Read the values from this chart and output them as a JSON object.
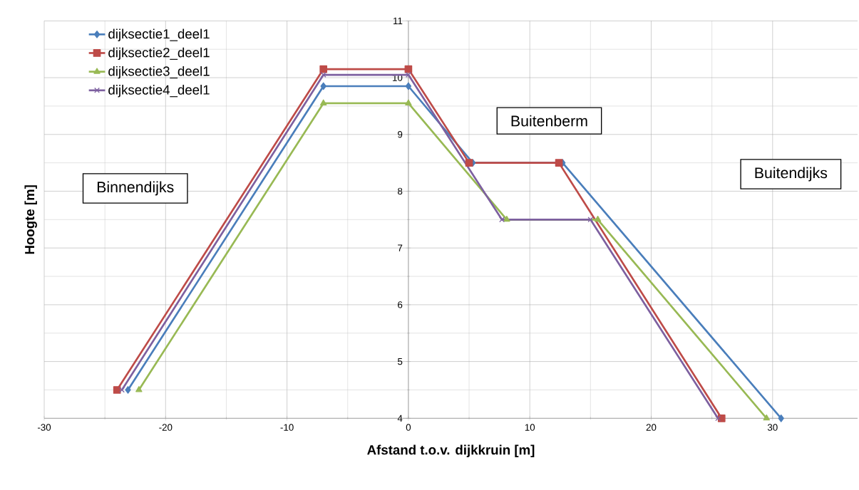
{
  "chart_data": {
    "type": "line",
    "xlabel": "Afstand t.o.v. dijkkruin  [m]",
    "ylabel": "Hoogte [m]",
    "xlim": [
      -30,
      37
    ],
    "ylim": [
      4,
      11
    ],
    "xticks": [
      -30,
      -20,
      -10,
      0,
      10,
      20,
      30
    ],
    "yticks": [
      4,
      5,
      6,
      7,
      8,
      9,
      10,
      11
    ],
    "grid": true,
    "legend": "top left",
    "annotations": [
      "Binnendijks",
      "Buitenberm",
      "Buitendijks"
    ],
    "series": [
      {
        "name": "dijksectie1_deel1",
        "color": "#4a7ebb",
        "marker": "diamond",
        "x": [
          -23.1,
          -7,
          0,
          5.3,
          12.7,
          30.7
        ],
        "values": [
          4.5,
          9.85,
          9.85,
          8.5,
          8.5,
          4
        ]
      },
      {
        "name": "dijksectie2_deel1",
        "color": "#be4b48",
        "marker": "square",
        "x": [
          -24,
          -7,
          0,
          5,
          12.4,
          25.8
        ],
        "values": [
          4.5,
          10.15,
          10.15,
          8.5,
          8.5,
          4
        ]
      },
      {
        "name": "dijksectie3_deel1",
        "color": "#98b954",
        "marker": "triangle",
        "x": [
          -22.2,
          -7,
          0,
          8.1,
          15.6,
          29.5
        ],
        "values": [
          4.5,
          9.55,
          9.55,
          7.5,
          7.5,
          4
        ]
      },
      {
        "name": "dijksectie4_deel1",
        "color": "#7d60a0",
        "marker": "cross",
        "x": [
          -23.6,
          -7,
          0,
          7.7,
          15,
          25.5
        ],
        "values": [
          4.5,
          10.05,
          10.05,
          7.5,
          7.5,
          4
        ]
      }
    ]
  }
}
